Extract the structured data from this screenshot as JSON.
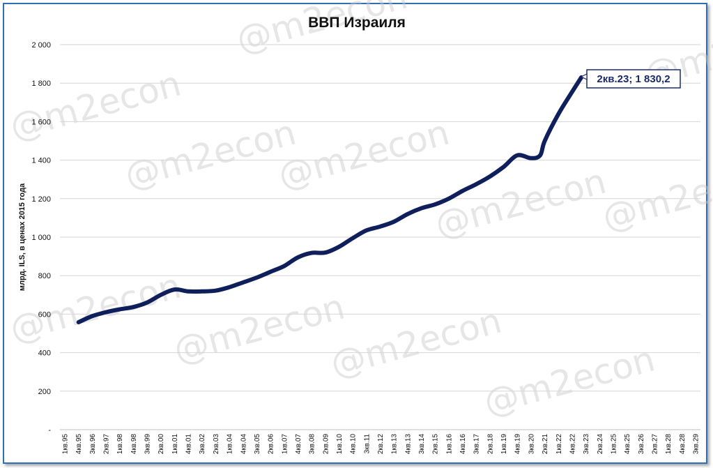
{
  "chart_data": {
    "type": "line",
    "title": "ВВП Израиля",
    "ylabel": "млрд. ILS, в ценах 2015 года",
    "xlabel": "",
    "ylim": [
      0,
      2000
    ],
    "y_ticks": [
      "-",
      "200",
      "400",
      "600",
      "800",
      "1 000",
      "1 200",
      "1 400",
      "1 600",
      "1 800",
      "2 000"
    ],
    "x_tick_labels": [
      "1кв.95",
      "4кв.95",
      "3кв.96",
      "2кв.97",
      "1кв.98",
      "4кв.98",
      "3кв.99",
      "2кв.00",
      "1кв.01",
      "4кв.01",
      "3кв.02",
      "2кв.03",
      "1кв.04",
      "4кв.04",
      "3кв.05",
      "2кв.06",
      "1кв.07",
      "4кв.07",
      "3кв.08",
      "2кв.09",
      "1кв.10",
      "4кв.10",
      "3кв.11",
      "2кв.12",
      "1кв.13",
      "4кв.13",
      "3кв.14",
      "2кв.15",
      "1кв.16",
      "4кв.16",
      "3кв.17",
      "2кв.18",
      "1кв.19",
      "4кв.19",
      "3кв.20",
      "2кв.21",
      "1кв.22",
      "4кв.22",
      "3кв.23",
      "2кв.24",
      "1кв.25",
      "4кв.25",
      "3кв.26",
      "2кв.27",
      "1кв.28",
      "4кв.28",
      "3кв.29"
    ],
    "grid": true,
    "legend": "none",
    "series": [
      {
        "color": "#0e1f5b",
        "points": [
          [
            "4кв.95",
            558
          ],
          [
            "3кв.96",
            590
          ],
          [
            "2кв.97",
            610
          ],
          [
            "1кв.98",
            625
          ],
          [
            "4кв.98",
            637
          ],
          [
            "3кв.99",
            660
          ],
          [
            "2кв.00",
            700
          ],
          [
            "1кв.01",
            728
          ],
          [
            "4кв.01",
            718
          ],
          [
            "3кв.02",
            718
          ],
          [
            "2кв.03",
            722
          ],
          [
            "1кв.04",
            740
          ],
          [
            "4кв.04",
            765
          ],
          [
            "3кв.05",
            790
          ],
          [
            "2кв.06",
            820
          ],
          [
            "1кв.07",
            850
          ],
          [
            "4кв.07",
            895
          ],
          [
            "3кв.08",
            918
          ],
          [
            "2кв.09",
            920
          ],
          [
            "1кв.10",
            950
          ],
          [
            "4кв.10",
            995
          ],
          [
            "3кв.11",
            1035
          ],
          [
            "2кв.12",
            1055
          ],
          [
            "1кв.13",
            1080
          ],
          [
            "4кв.13",
            1120
          ],
          [
            "3кв.14",
            1150
          ],
          [
            "2кв.15",
            1170
          ],
          [
            "1кв.16",
            1200
          ],
          [
            "4кв.16",
            1240
          ],
          [
            "3кв.17",
            1275
          ],
          [
            "2кв.18",
            1315
          ],
          [
            "1кв.19",
            1365
          ],
          [
            "4кв.19",
            1425
          ],
          [
            "3кв.20",
            1410
          ],
          [
            "1кв.21",
            1425
          ],
          [
            "2кв.21",
            1500
          ],
          [
            "1кв.22",
            1640
          ],
          [
            "4кв.22",
            1755
          ],
          [
            "2кв.23",
            1830.2
          ]
        ]
      }
    ],
    "annotation": "2кв.23;  1 830,2"
  },
  "watermark": "@m2econ"
}
